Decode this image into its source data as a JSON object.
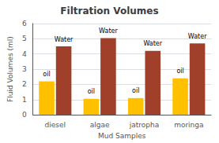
{
  "chart_data": {
    "type": "bar",
    "title": "Filtration Volumes",
    "xlabel": "Mud Samples",
    "ylabel": "Fluid Volumes (ml)",
    "categories": [
      "diesel",
      "algae",
      "jatropha",
      "moringa"
    ],
    "series": [
      {
        "name": "oil",
        "color": "#FFC000",
        "values": [
          2.2,
          1.05,
          1.1,
          2.4
        ]
      },
      {
        "name": "Water",
        "color": "#A0402A",
        "values": [
          4.5,
          5.05,
          4.2,
          4.7
        ]
      }
    ],
    "ylim": [
      0,
      6
    ],
    "yticks": [
      0,
      1,
      2,
      3,
      4,
      5,
      6
    ],
    "grid": true
  }
}
